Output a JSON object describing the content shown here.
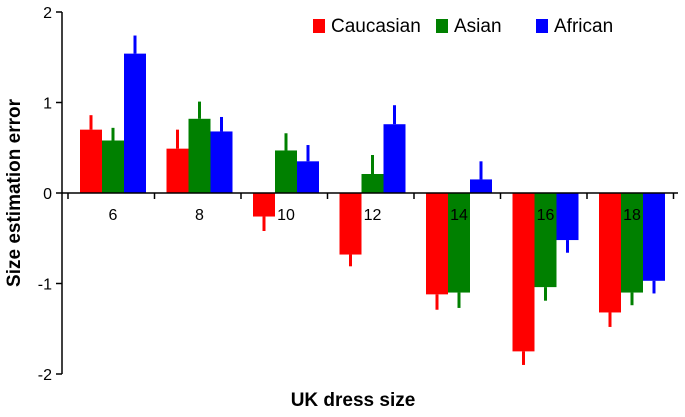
{
  "chart_data": {
    "type": "bar",
    "title": "",
    "xlabel": "UK dress size",
    "ylabel": "Size estimation error",
    "ylim": [
      -2,
      2
    ],
    "yticks": [
      -2,
      -1,
      0,
      1,
      2
    ],
    "categories": [
      "6",
      "8",
      "10",
      "12",
      "14",
      "16",
      "18"
    ],
    "grid": false,
    "legend": "top-right",
    "series": [
      {
        "name": "Caucasian",
        "color": "#ff0000",
        "values": [
          0.7,
          0.49,
          -0.26,
          -0.68,
          -1.12,
          -1.75,
          -1.32
        ],
        "errors": [
          0.16,
          0.21,
          0.16,
          0.13,
          0.17,
          0.15,
          0.16
        ]
      },
      {
        "name": "Asian",
        "color": "#008000",
        "values": [
          0.58,
          0.82,
          0.47,
          0.21,
          -1.1,
          -1.04,
          -1.1
        ],
        "errors": [
          0.14,
          0.19,
          0.19,
          0.21,
          0.17,
          0.15,
          0.14
        ]
      },
      {
        "name": "African",
        "color": "#0000ff",
        "values": [
          1.54,
          0.68,
          0.35,
          0.76,
          0.15,
          -0.52,
          -0.97
        ],
        "errors": [
          0.2,
          0.16,
          0.18,
          0.21,
          0.2,
          0.14,
          0.14
        ]
      }
    ]
  }
}
